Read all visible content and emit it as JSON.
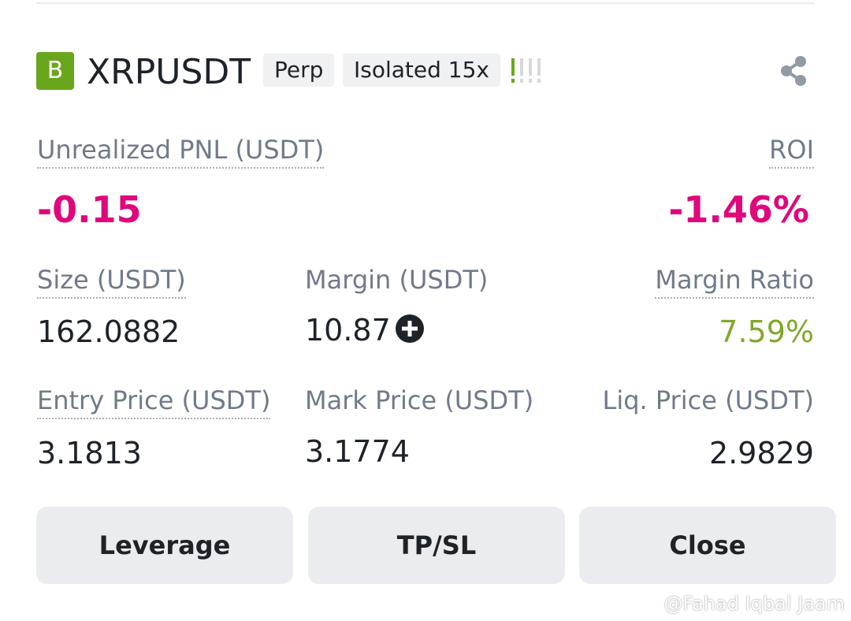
{
  "header": {
    "badge": "B",
    "symbol": "XRPUSDT",
    "tags": [
      "Perp",
      "Isolated 15x"
    ]
  },
  "pnl": {
    "label": "Unrealized PNL (USDT)",
    "value": "-0.15"
  },
  "roi": {
    "label": "ROI",
    "value": "-1.46%"
  },
  "fields": [
    {
      "label": "Size (USDT)",
      "value": "162.0882"
    },
    {
      "label": "Margin (USDT)",
      "value": "10.87"
    },
    {
      "label": "Margin Ratio",
      "value": "7.59%"
    },
    {
      "label": "Entry Price (USDT)",
      "value": "3.1813"
    },
    {
      "label": "Mark Price (USDT)",
      "value": "3.1774"
    },
    {
      "label": "Liq. Price (USDT)",
      "value": "2.9829"
    }
  ],
  "buttons": [
    "Leverage",
    "TP/SL",
    "Close"
  ],
  "watermark": "@Fahad Iqbal Jaam"
}
